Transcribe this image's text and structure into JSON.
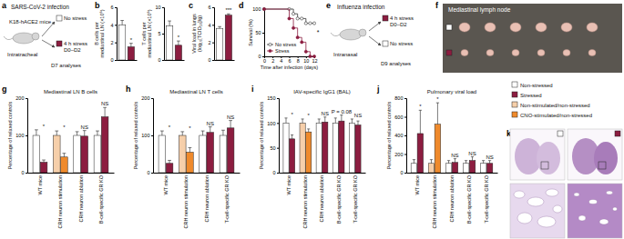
{
  "panels": {
    "letters": [
      "a",
      "b",
      "c",
      "d",
      "e",
      "f",
      "g",
      "h",
      "i",
      "j",
      "k"
    ],
    "a": {
      "infection": "SARS-CoV-2 infection",
      "mice": "K18-hACE2 mice",
      "route": "Intratracheal",
      "control": "No stress",
      "stress": "4 h stress",
      "days": "D0–D2",
      "analysis": "D7 analyses"
    },
    "e": {
      "infection": "Influenza infection",
      "route": "Intranasal",
      "stress": "4 h stress",
      "days": "D0–D2",
      "control": "No stress",
      "analysis": "D9 analyses"
    },
    "f": {
      "label": "Mediastinal lymph node"
    }
  },
  "legend_items": [
    {
      "label": "Non-stressed",
      "color": "#ffffff"
    },
    {
      "label": "Stressed",
      "color": "#8c1d40"
    },
    {
      "label": "Non-stimulated/non-stressed",
      "color": "#f6cfaa"
    },
    {
      "label": "CNO-stimulated/non-stressed",
      "color": "#ef8a2c"
    }
  ],
  "chart_data": [
    {
      "type": "bar",
      "ylabel": "B cells per mediastinal LN (×10⁶)",
      "categories": [
        null,
        null
      ],
      "values": [
        4.0,
        1.5
      ],
      "errors": [
        0.5,
        0.4
      ],
      "colors": [
        "#ffffff",
        "#8c1d40"
      ],
      "ylim": [
        0,
        6
      ],
      "yticks": [
        0,
        2,
        4,
        6
      ],
      "annotations": [
        null,
        "*"
      ],
      "tick_labels": "y"
    },
    {
      "type": "bar",
      "ylabel": "T cells per mediastinal LN (×10⁶)",
      "categories": [
        null,
        null
      ],
      "values": [
        6.5,
        2.8
      ],
      "errors": [
        0.9,
        0.8
      ],
      "colors": [
        "#ffffff",
        "#8c1d40"
      ],
      "ylim": [
        0,
        10
      ],
      "yticks": [
        0,
        5,
        10
      ],
      "annotations": [
        null,
        "*"
      ],
      "tick_labels": "y"
    },
    {
      "type": "bar",
      "ylabel": "Viral load in lungs (log₁₀[TCID₅₀]/g)",
      "categories": [
        null,
        null
      ],
      "values": [
        3.6,
        5.1
      ],
      "errors": [
        0.2,
        0.15
      ],
      "colors": [
        "#ffffff",
        "#8c1d40"
      ],
      "ylim": [
        0,
        6
      ],
      "yticks": [
        0,
        2,
        4,
        6
      ],
      "annotations": [
        null,
        "***"
      ],
      "tick_labels": "y"
    },
    {
      "type": "line",
      "xlabel": "Time after infection (days)",
      "ylabel": "Survival (%)",
      "x": [
        0,
        6,
        7,
        8,
        9,
        10,
        11,
        12
      ],
      "series": [
        {
          "name": "No stress",
          "color": "#333333",
          "marker": "circle-open",
          "line_style": "solid",
          "values": [
            100,
            100,
            90,
            80,
            80,
            70,
            70,
            70
          ]
        },
        {
          "name": "Stress",
          "color": "#8c1d40",
          "marker": "circle",
          "line_style": "solid",
          "values": [
            100,
            80,
            60,
            40,
            30,
            10,
            0,
            0
          ]
        }
      ],
      "xlim": [
        0,
        12
      ],
      "xticks": [
        0,
        2,
        4,
        6,
        8,
        10,
        12
      ],
      "ylim": [
        0,
        100
      ],
      "yticks": [
        0,
        50,
        100
      ],
      "legend": "lower left",
      "annotations": [
        "*"
      ]
    },
    {
      "type": "bar",
      "title": "Mediastinal LN B cells",
      "ylabel": "Percentage of relaxed controls",
      "categories": [
        "WT mice",
        "CRH neuron stimulation",
        "CRH neuron ablation",
        "B-cell-specific GR KO"
      ],
      "series": [
        {
          "values": [
            100,
            100,
            100,
            100
          ],
          "errors": [
            15,
            12,
            10,
            12
          ],
          "colors": [
            "#ffffff",
            "#f6cfaa",
            "#ffffff",
            "#ffffff"
          ]
        },
        {
          "values": [
            28,
            42,
            98,
            150
          ],
          "errors": [
            6,
            10,
            15,
            25
          ],
          "colors": [
            "#8c1d40",
            "#ef8a2c",
            "#8c1d40",
            "#8c1d40"
          ]
        }
      ],
      "ylim": [
        0,
        200
      ],
      "yticks": [
        0,
        100,
        200
      ],
      "annotations": [
        "*",
        "*",
        "NS",
        "NS"
      ]
    },
    {
      "type": "bar",
      "title": "Mediastinal LN T cells",
      "ylabel": "Percentage of relaxed controls",
      "categories": [
        "WT mice",
        "CRH neuron stimulation",
        "CRH neuron ablation",
        "T-cell-specific GR KO"
      ],
      "series": [
        {
          "values": [
            100,
            100,
            100,
            100
          ],
          "errors": [
            12,
            10,
            12,
            14
          ],
          "colors": [
            "#ffffff",
            "#f6cfaa",
            "#ffffff",
            "#ffffff"
          ]
        },
        {
          "values": [
            25,
            55,
            108,
            120
          ],
          "errors": [
            8,
            12,
            15,
            20
          ],
          "colors": [
            "#8c1d40",
            "#ef8a2c",
            "#8c1d40",
            "#8c1d40"
          ]
        }
      ],
      "ylim": [
        0,
        200
      ],
      "yticks": [
        0,
        100,
        200
      ],
      "annotations": [
        "*",
        "*",
        "NS",
        "NS"
      ]
    },
    {
      "type": "bar",
      "title": "IAV-specific IgG1 (BAL)",
      "ylabel": "Percentage of relaxed controls",
      "categories": [
        "WT mice",
        "CRH neuron stimulation",
        "CRH neuron ablation",
        "B-cell-specific GR KO",
        "T-cell-specific GR KO"
      ],
      "series": [
        {
          "values": [
            100,
            100,
            100,
            100,
            100
          ],
          "errors": [
            10,
            8,
            8,
            10,
            8
          ],
          "colors": [
            "#ffffff",
            "#f6cfaa",
            "#ffffff",
            "#ffffff",
            "#ffffff"
          ]
        },
        {
          "values": [
            68,
            82,
            102,
            104,
            96
          ],
          "errors": [
            8,
            6,
            10,
            12,
            8
          ],
          "colors": [
            "#8c1d40",
            "#ef8a2c",
            "#8c1d40",
            "#8c1d40",
            "#8c1d40"
          ]
        }
      ],
      "ylim": [
        0,
        150
      ],
      "yticks": [
        0,
        50,
        100,
        150
      ],
      "annotations": [
        "*",
        "*",
        "NS",
        "P = 0.08",
        "NS"
      ]
    },
    {
      "type": "bar",
      "title": "Pulmonary viral load",
      "ylabel": "Percentage of relaxed controls",
      "categories": [
        "WT mice",
        "CRH neuron stimulation",
        "CRH neuron ablation",
        "B-cell-specific GR KO",
        "T-cell-specific GR KO"
      ],
      "series": [
        {
          "values": [
            100,
            100,
            100,
            100,
            100
          ],
          "errors": [
            40,
            40,
            30,
            30,
            30
          ],
          "colors": [
            "#ffffff",
            "#f6cfaa",
            "#ffffff",
            "#ffffff",
            "#ffffff"
          ]
        },
        {
          "values": [
            420,
            520,
            110,
            130,
            100
          ],
          "errors": [
            250,
            230,
            40,
            40,
            30
          ],
          "colors": [
            "#8c1d40",
            "#ef8a2c",
            "#8c1d40",
            "#8c1d40",
            "#8c1d40"
          ]
        }
      ],
      "ylim": [
        0,
        800
      ],
      "yticks": [
        0,
        200,
        400,
        600,
        800
      ],
      "annotations": [
        "*",
        "*",
        "NS",
        "NS",
        "NS"
      ]
    }
  ]
}
